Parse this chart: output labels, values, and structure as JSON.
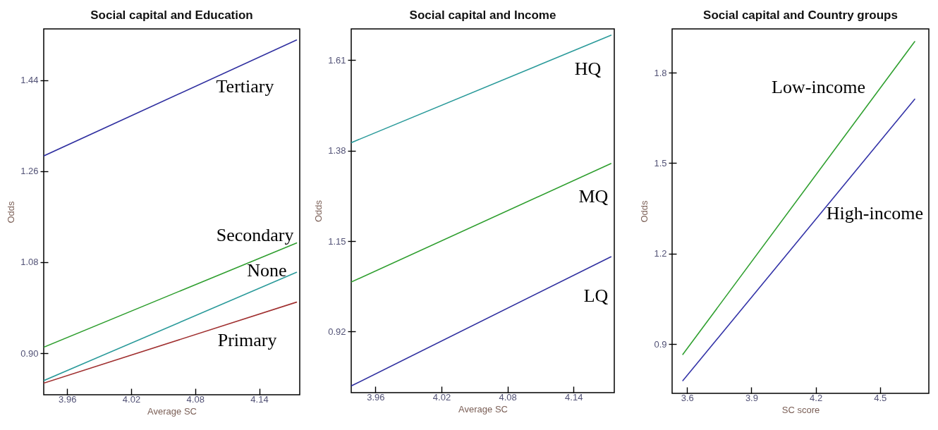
{
  "chart_data": [
    {
      "type": "line",
      "title": "Social capital and Education",
      "xlabel": "Average SC",
      "ylabel": "Odds",
      "xlim": [
        3.938,
        4.178
      ],
      "ylim": [
        0.818,
        1.541
      ],
      "xticks": [
        3.96,
        4.02,
        4.08,
        4.14
      ],
      "yticks": [
        {
          "value": 0.9,
          "label": "0.90"
        },
        1.08,
        1.26,
        1.44
      ],
      "x": [
        3.938,
        4.175
      ],
      "series": [
        {
          "name": "Tertiary",
          "color": "#3030a0",
          "values": [
            1.29,
            1.519
          ]
        },
        {
          "name": "Secondary",
          "color": "#2e9e2e",
          "values": [
            0.912,
            1.118
          ]
        },
        {
          "name": "None",
          "color": "#2a9a9a",
          "values": [
            0.846,
            1.06
          ]
        },
        {
          "name": "Primary",
          "color": "#a03030",
          "values": [
            0.841,
            1.001
          ]
        }
      ]
    },
    {
      "type": "line",
      "title": "Social capital and Income",
      "xlabel": "Average SC",
      "ylabel": "Odds",
      "xlim": [
        3.938,
        4.177
      ],
      "ylim": [
        0.765,
        1.689
      ],
      "xticks": [
        3.96,
        4.02,
        4.08,
        4.14
      ],
      "yticks": [
        0.92,
        1.15,
        1.38,
        1.61
      ],
      "x": [
        3.938,
        4.174
      ],
      "series": [
        {
          "name": "HQ",
          "color": "#2a9a9a",
          "values": [
            1.4,
            1.673
          ]
        },
        {
          "name": "MQ",
          "color": "#2e9e2e",
          "values": [
            1.046,
            1.347
          ]
        },
        {
          "name": "LQ",
          "color": "#3030a0",
          "values": [
            0.782,
            1.11
          ]
        }
      ]
    },
    {
      "type": "line",
      "title": "Social capital and Country groups",
      "xlabel": "SC score",
      "ylabel": "Odds",
      "xlim": [
        3.53,
        4.728
      ],
      "ylim": [
        0.737,
        1.945
      ],
      "xticks": [
        3.6,
        3.9,
        4.2,
        4.5
      ],
      "yticks": [
        0.9,
        1.2,
        1.5,
        1.8
      ],
      "x": [
        3.58,
        4.662
      ],
      "series": [
        {
          "name": "Low-income",
          "color": "#30a030",
          "values": [
            0.866,
            1.903
          ]
        },
        {
          "name": "High-income",
          "color": "#3434a8",
          "values": [
            0.779,
            1.712
          ]
        }
      ]
    }
  ]
}
